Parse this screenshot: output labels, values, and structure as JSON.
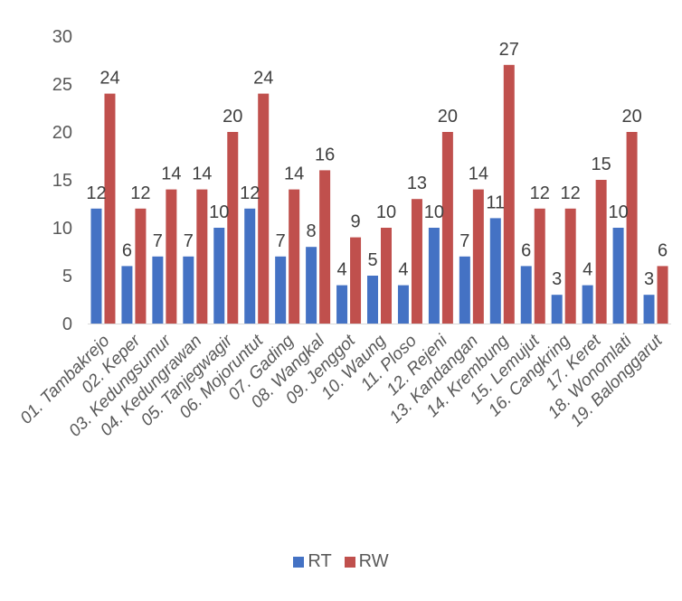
{
  "chart_data": {
    "type": "bar",
    "title": "",
    "xlabel": "",
    "ylabel": "",
    "ylim": [
      0,
      30
    ],
    "yticks": [
      0,
      5,
      10,
      15,
      20,
      25,
      30
    ],
    "grid": false,
    "legend_position": "bottom",
    "categories": [
      "01. Tambakrejo",
      "02. Keper",
      "03. Kedungsumur",
      "04. Kedungrawan",
      "05. Tanjegwagir",
      "06. Mojoruntut",
      "07. Gading",
      "08. Wangkal",
      "09. Jenggot",
      "10. Waung",
      "11. Ploso",
      "12. Rejeni",
      "13. Kandangan",
      "14. Krembung",
      "15. Lemujut",
      "16. Cangkring",
      "17. Keret",
      "18. Wonomlati",
      "19. Balonggarut"
    ],
    "series": [
      {
        "name": "RT",
        "color": "#4472C4",
        "values": [
          12,
          6,
          7,
          7,
          10,
          12,
          7,
          8,
          4,
          5,
          4,
          10,
          7,
          11,
          6,
          3,
          4,
          10,
          3
        ]
      },
      {
        "name": "RW",
        "color": "#C0504D",
        "values": [
          24,
          12,
          14,
          14,
          20,
          24,
          14,
          16,
          9,
          10,
          13,
          20,
          14,
          27,
          12,
          12,
          15,
          20,
          6
        ]
      }
    ]
  }
}
